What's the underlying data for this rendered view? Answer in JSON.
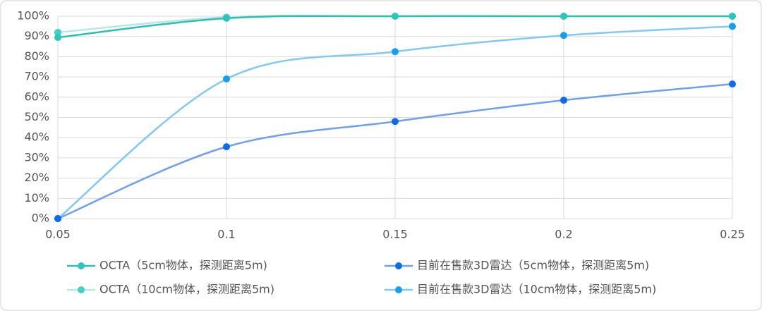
{
  "chart_data": {
    "type": "line",
    "smooth": true,
    "grid": true,
    "legend": "bottom",
    "x": [
      0.05,
      0.1,
      0.15,
      0.2,
      0.25
    ],
    "xlim": [
      0.05,
      0.25
    ],
    "xticks": [
      0.05,
      0.1,
      0.15,
      0.2,
      0.25
    ],
    "ylim": [
      0,
      100
    ],
    "yticks": [
      {
        "value": 0,
        "label": "0%"
      },
      {
        "value": 10,
        "label": "10%"
      },
      {
        "value": 20,
        "label": "20%"
      },
      {
        "value": 30,
        "label": "30%"
      },
      {
        "value": 40,
        "label": "40%"
      },
      {
        "value": 50,
        "label": "50%"
      },
      {
        "value": 60,
        "label": "60%"
      },
      {
        "value": 70,
        "label": "70%"
      },
      {
        "value": 80,
        "label": "80%"
      },
      {
        "value": 90,
        "label": "90%"
      },
      {
        "value": 100,
        "label": "100%"
      }
    ],
    "series": [
      {
        "name": "OCTA（5cm物体，探测距离5m)",
        "color": "#2cbfb3",
        "marker_color": "#2cc5bb",
        "values": [
          89.5,
          99,
          100,
          100,
          100
        ]
      },
      {
        "name": "目前在售款3D雷达（5cm物体，探测距离5m)",
        "color": "#6e9ff0",
        "marker_color": "#0a6af2",
        "values": [
          0,
          35.5,
          48,
          58.5,
          66.5
        ]
      },
      {
        "name": "OCTA（10cm物体，探测距离5m)",
        "color": "#b6e9e1",
        "marker_color": "#3fd0c6",
        "values": [
          92,
          99.5,
          100,
          100,
          100
        ]
      },
      {
        "name": "目前在售款3D雷达（10cm物体，探测距离5m)",
        "color": "#80c9f7",
        "marker_color": "#139ff3",
        "values": [
          0,
          69,
          82.5,
          90.5,
          95
        ]
      }
    ]
  }
}
